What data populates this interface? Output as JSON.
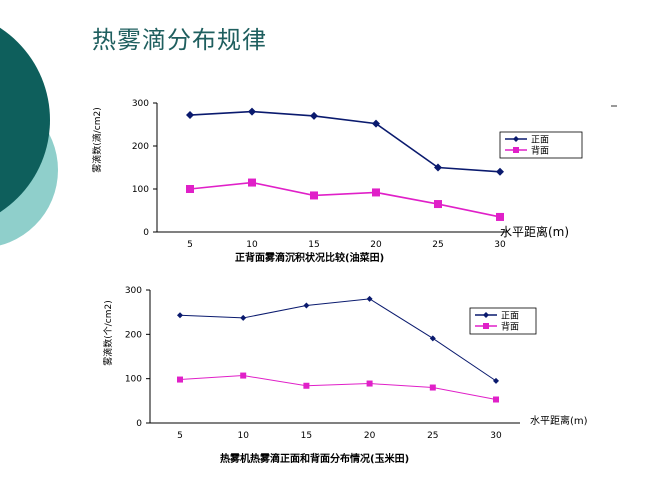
{
  "slide": {
    "title": "热雾滴分布规律",
    "colors": {
      "teal_dark": "#0e5f5c",
      "teal_light": "#8fcfcb",
      "title": "#1f5f5f"
    }
  },
  "chart_data": [
    {
      "type": "line",
      "categories": [
        "5",
        "10",
        "15",
        "20",
        "25",
        "30"
      ],
      "series": [
        {
          "name": "正面",
          "values": [
            272,
            280,
            270,
            252,
            150,
            140
          ],
          "color": "#0a1a6e",
          "marker": "diamond"
        },
        {
          "name": "背面",
          "values": [
            100,
            115,
            85,
            92,
            65,
            35
          ],
          "color": "#e020c8",
          "marker": "square"
        }
      ],
      "yticks": [
        "0",
        "100",
        "200",
        "300"
      ],
      "ylim": [
        0,
        300
      ],
      "ylabel": "雾滴数(滴/cm2)",
      "xlabel": "水平距离(m)",
      "caption": "正背面雾滴沉积状况比较(油菜田)",
      "grid": false,
      "legend_position": "right"
    },
    {
      "type": "line",
      "categories": [
        "5",
        "10",
        "15",
        "20",
        "25",
        "30"
      ],
      "series": [
        {
          "name": "正面",
          "values": [
            243,
            237,
            265,
            280,
            191,
            95
          ],
          "color": "#0a1a6e",
          "marker": "diamond"
        },
        {
          "name": "背面",
          "values": [
            98,
            107,
            84,
            89,
            80,
            53
          ],
          "color": "#e020c8",
          "marker": "square"
        }
      ],
      "yticks": [
        "0",
        "100",
        "200",
        "300"
      ],
      "ylim": [
        0,
        300
      ],
      "ylabel": "雾滴数(个/cm2)",
      "xlabel": "水平距离(m)",
      "caption": "热雾机热雾滴正面和背面分布情况(玉米田)",
      "grid": false,
      "legend_position": "right"
    }
  ]
}
